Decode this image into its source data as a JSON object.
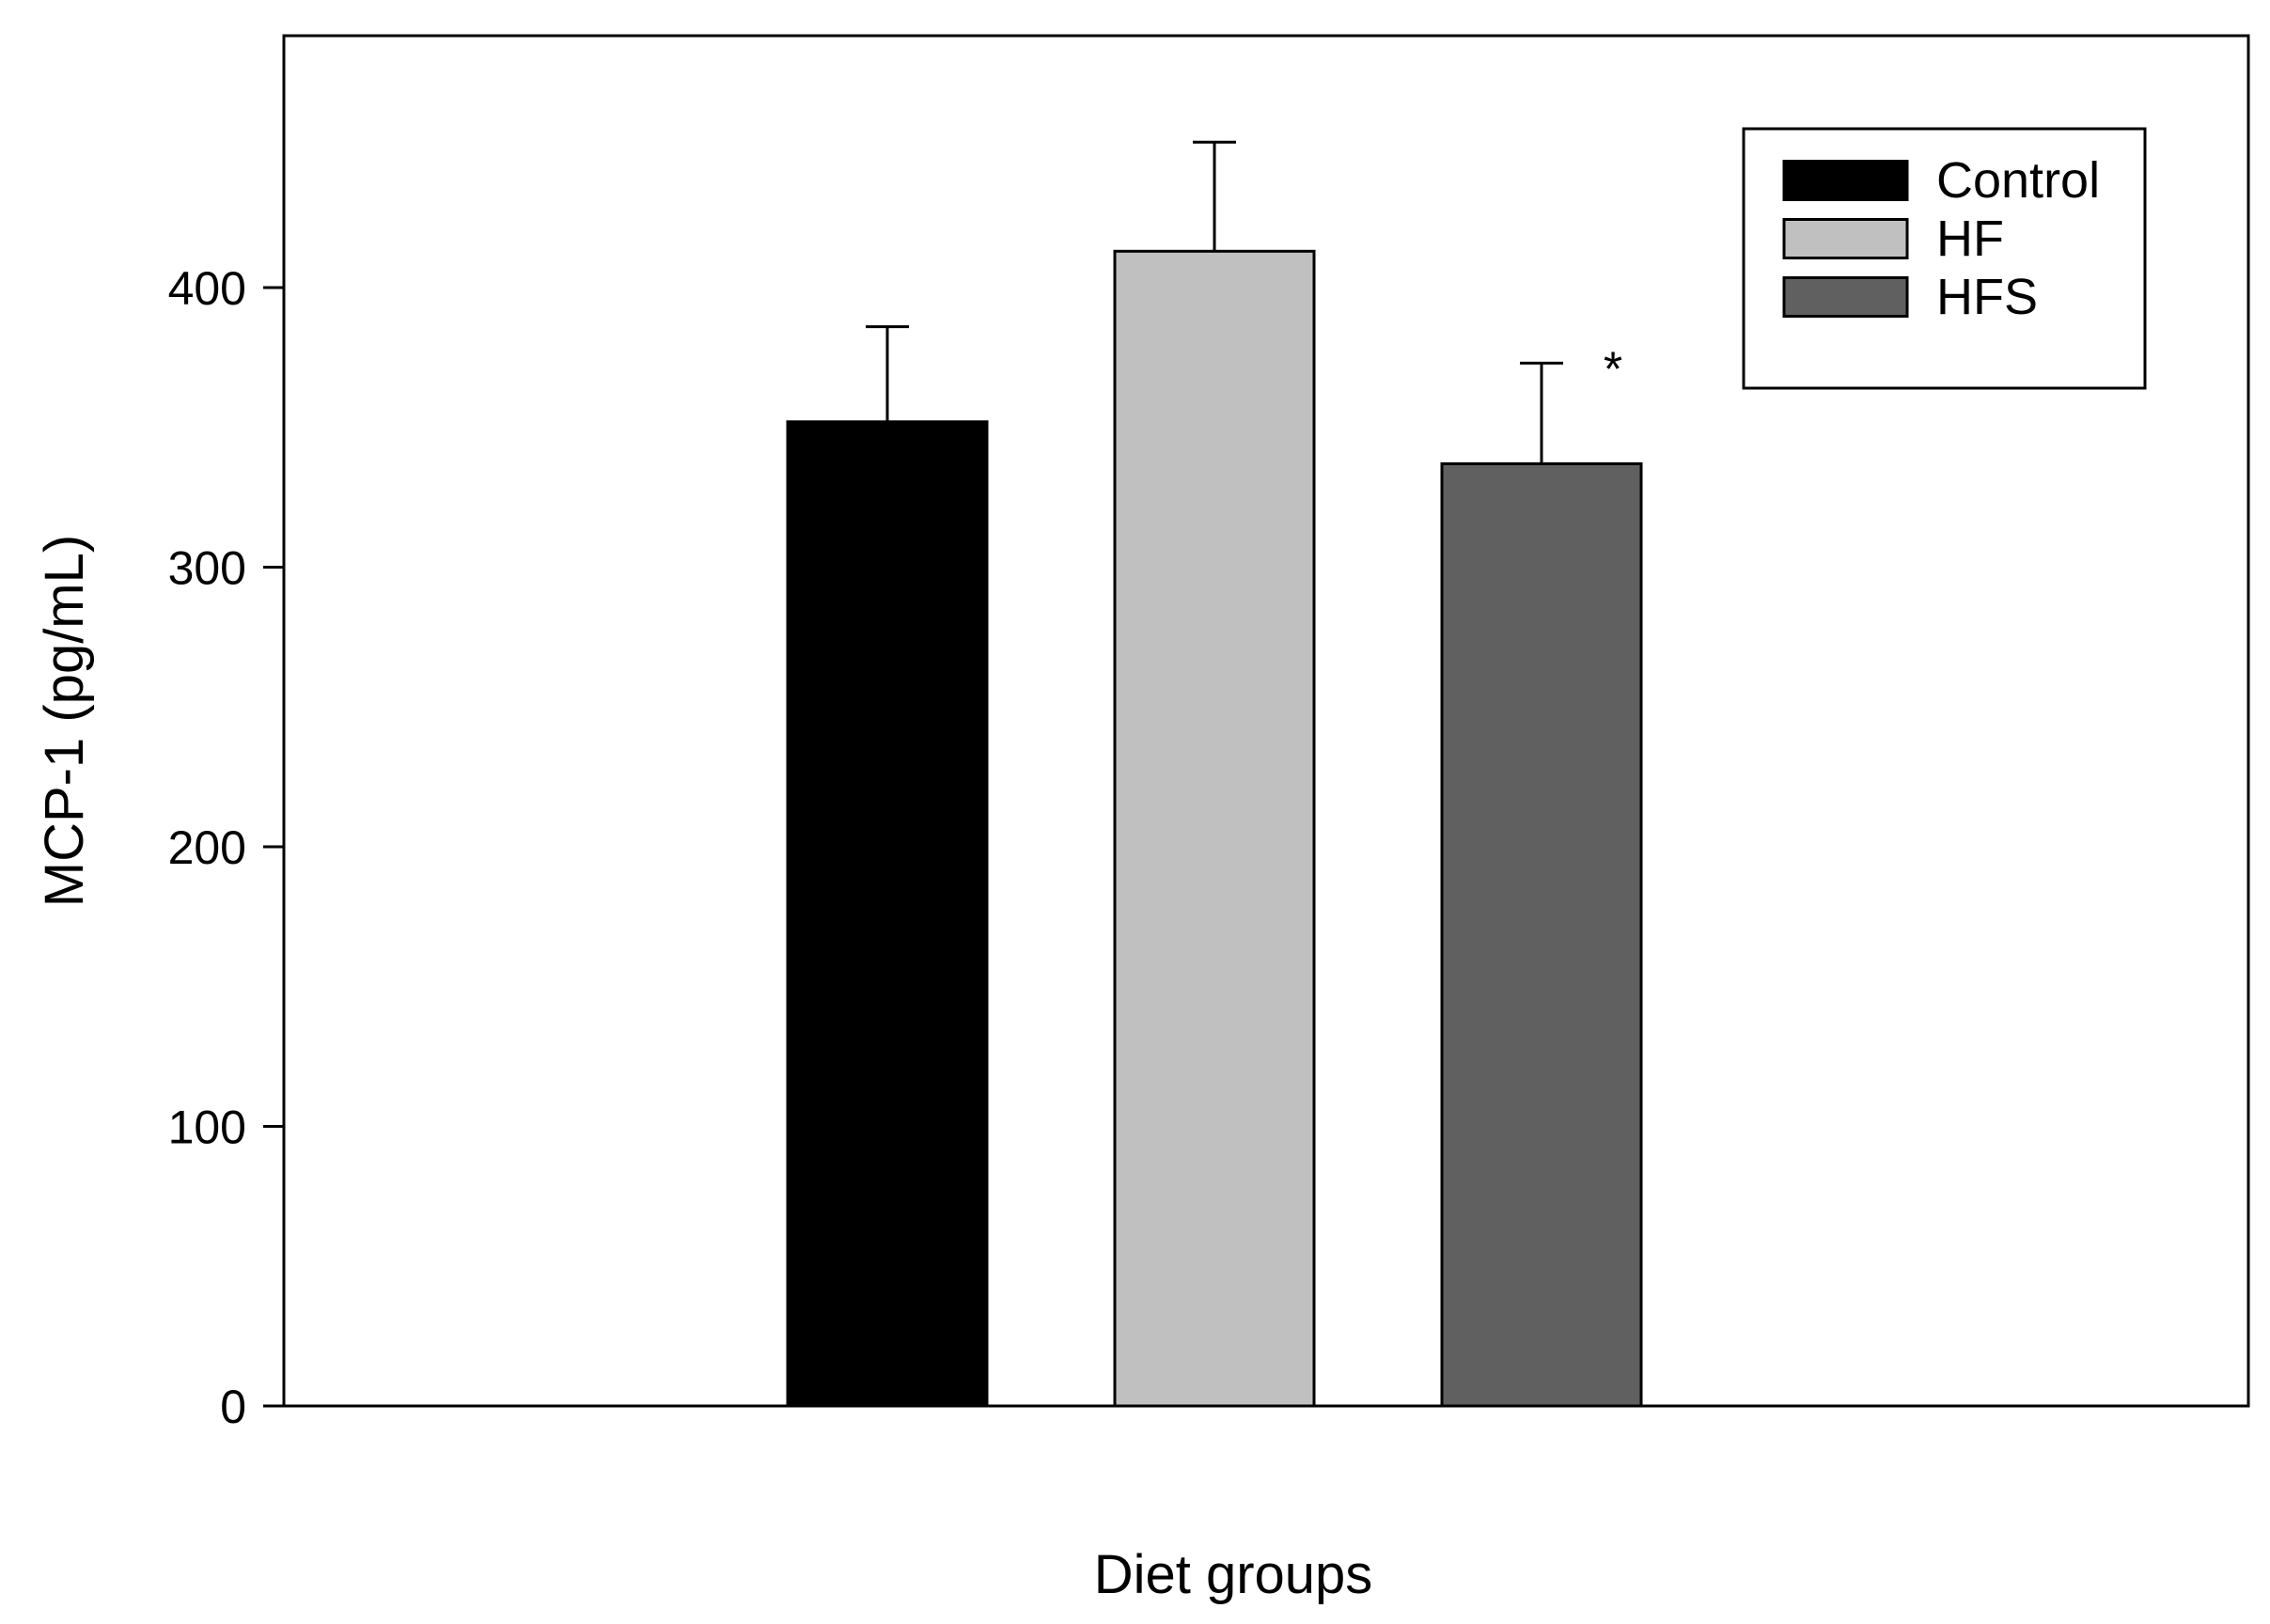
{
  "chart_data": {
    "type": "bar",
    "title": "",
    "xlabel": "Diet groups",
    "ylabel": "MCP-1 (pg/mL)",
    "ylim": [
      0,
      490
    ],
    "yticks": [
      0,
      100,
      200,
      300,
      400
    ],
    "grid": false,
    "legend_position": "top-right",
    "series": [
      {
        "name": "Control",
        "value": 352,
        "error": 34,
        "color": "#000000",
        "annotation": ""
      },
      {
        "name": "HF",
        "value": 413,
        "error": 39,
        "color": "#c0c0c0",
        "annotation": ""
      },
      {
        "name": "HFS",
        "value": 337,
        "error": 36,
        "color": "#606060",
        "annotation": "*"
      }
    ]
  }
}
